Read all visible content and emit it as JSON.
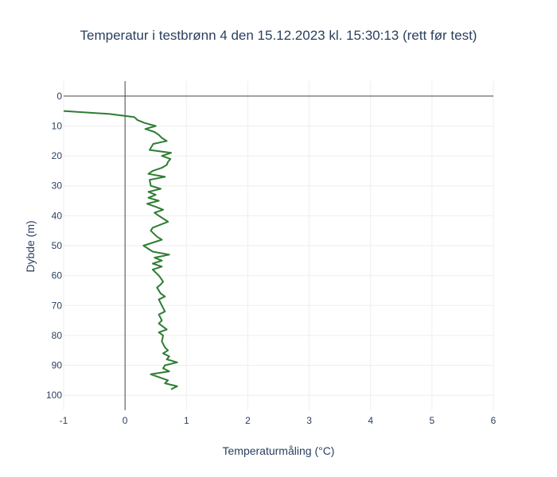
{
  "chart_data": {
    "type": "line",
    "title": "Temperatur i testbrønn 4 den 15.12.2023 kl. 15:30:13 (rett før test)",
    "xlabel": "Temperaturmåling (°C)",
    "ylabel": "Dybde (m)",
    "xlim": [
      -1,
      6
    ],
    "ylim": [
      105,
      -5
    ],
    "y_reversed": true,
    "x_ticks": [
      "-1",
      "0",
      "1",
      "2",
      "3",
      "4",
      "5",
      "6"
    ],
    "y_ticks": [
      "0",
      "10",
      "20",
      "30",
      "40",
      "50",
      "60",
      "70",
      "80",
      "90",
      "100"
    ],
    "grid": true,
    "legend": "none",
    "colors": {
      "line": "#2e7d32",
      "grid": "#eeeeee",
      "zero_line": "#444444"
    },
    "series": [
      {
        "x": [
          -1.0,
          -0.25,
          0.15,
          0.2,
          0.32,
          0.5,
          0.33,
          0.48,
          0.55,
          0.6,
          0.68,
          0.46,
          0.4,
          0.75,
          0.6,
          0.74,
          0.7,
          0.68,
          0.6,
          0.45,
          0.38,
          0.65,
          0.4,
          0.42,
          0.58,
          0.38,
          0.5,
          0.38,
          0.55,
          0.36,
          0.5,
          0.62,
          0.48,
          0.55,
          0.7,
          0.45,
          0.42,
          0.52,
          0.6,
          0.3,
          0.45,
          0.72,
          0.48,
          0.6,
          0.45,
          0.6,
          0.45,
          0.55,
          0.62,
          0.58,
          0.52,
          0.58,
          0.65,
          0.55,
          0.6,
          0.65,
          0.55,
          0.6,
          0.55,
          0.68,
          0.55,
          0.62,
          0.6,
          0.65,
          0.7,
          0.62,
          0.72,
          0.68,
          0.85,
          0.65,
          0.62,
          0.72,
          0.42,
          0.7,
          0.65,
          0.85,
          0.75
        ],
        "y": [
          5,
          6,
          7,
          8,
          9,
          10,
          11,
          12,
          13,
          14,
          15,
          16,
          18,
          19,
          20,
          21,
          22,
          23,
          24,
          25,
          26,
          27,
          28,
          30,
          31,
          32,
          33,
          34,
          35,
          36,
          37,
          38,
          39,
          40,
          42,
          44,
          45,
          47,
          48,
          50,
          52,
          53,
          54,
          55,
          56,
          57,
          58,
          60,
          62,
          63,
          64,
          66,
          67,
          68,
          70,
          72,
          73,
          75,
          76,
          78,
          79,
          80,
          82,
          84,
          85,
          86,
          87,
          88,
          89,
          90,
          91,
          92,
          93,
          95,
          96,
          97,
          98
        ]
      }
    ]
  }
}
